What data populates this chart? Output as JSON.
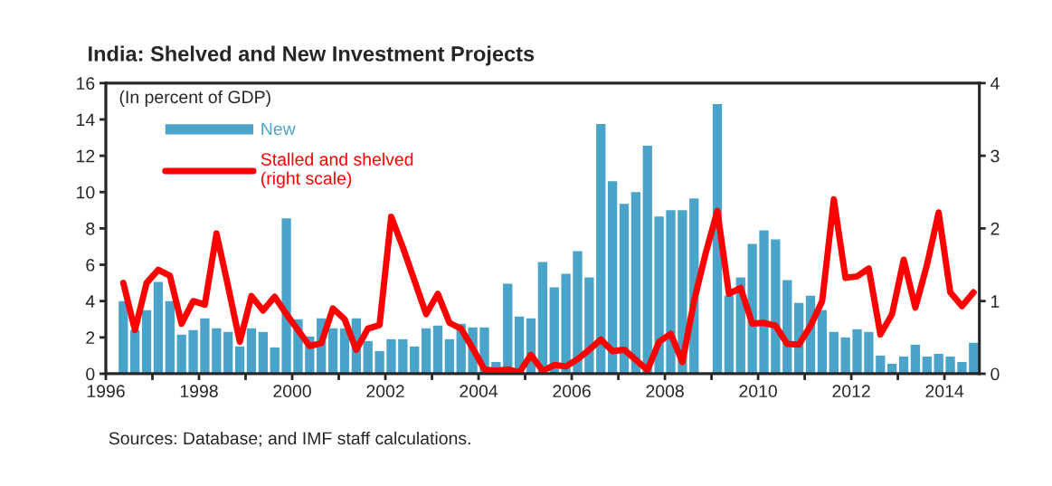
{
  "chart_data": {
    "type": "bar",
    "title": "India: Shelved and New Investment Projects",
    "subtitle": "(In percent of GDP)",
    "annotations": [
      "Sources: Database; and IMF staff calculations."
    ],
    "x": [
      1996.375,
      1996.625,
      1996.875,
      1997.125,
      1997.375,
      1997.625,
      1997.875,
      1998.125,
      1998.375,
      1998.625,
      1998.875,
      1999.125,
      1999.375,
      1999.625,
      1999.875,
      2000.125,
      2000.375,
      2000.625,
      2000.875,
      2001.125,
      2001.375,
      2001.625,
      2001.875,
      2002.125,
      2002.375,
      2002.625,
      2002.875,
      2003.125,
      2003.375,
      2003.625,
      2003.875,
      2004.125,
      2004.375,
      2004.625,
      2004.875,
      2005.125,
      2005.375,
      2005.625,
      2005.875,
      2006.125,
      2006.375,
      2006.625,
      2006.875,
      2007.125,
      2007.375,
      2007.625,
      2007.875,
      2008.125,
      2008.375,
      2008.625,
      2008.875,
      2009.125,
      2009.375,
      2009.625,
      2009.875,
      2010.125,
      2010.375,
      2010.625,
      2010.875,
      2011.125,
      2011.375,
      2011.625,
      2011.875,
      2012.125,
      2012.375,
      2012.625,
      2012.875,
      2013.125,
      2013.375,
      2013.625,
      2013.875,
      2014.125,
      2014.375,
      2014.625
    ],
    "series": [
      {
        "name": "New",
        "color": "#4aa3c8",
        "values": [
          4.0,
          2.4,
          3.5,
          5.05,
          4.0,
          2.15,
          2.4,
          3.05,
          2.5,
          2.3,
          1.5,
          2.5,
          2.3,
          1.45,
          8.55,
          3.0,
          2.05,
          3.05,
          2.5,
          2.5,
          3.05,
          1.8,
          1.25,
          1.9,
          1.9,
          1.5,
          2.5,
          2.65,
          1.9,
          2.75,
          2.55,
          2.55,
          0.65,
          4.95,
          3.15,
          3.05,
          6.15,
          4.75,
          5.5,
          6.75,
          5.3,
          13.75,
          10.6,
          9.35,
          10.0,
          12.55,
          8.65,
          9.0,
          9.0,
          9.65,
          null,
          14.85,
          4.3,
          5.3,
          7.15,
          7.9,
          7.4,
          5.15,
          3.9,
          4.3,
          3.5,
          2.3,
          2.0,
          2.45,
          2.3,
          1.0,
          0.55,
          0.95,
          1.6,
          0.95,
          1.1,
          0.95,
          0.65,
          1.7
        ]
      },
      {
        "name": "Stalled and shelved\n(right scale)",
        "type": "line",
        "axis": "y2",
        "color": "#ff0000",
        "values": [
          1.25,
          0.6,
          1.25,
          1.43,
          1.35,
          0.69,
          1.0,
          0.95,
          1.93,
          1.2,
          0.44,
          1.07,
          0.87,
          1.06,
          0.82,
          0.6,
          0.38,
          0.42,
          0.9,
          0.75,
          0.33,
          0.62,
          0.67,
          2.16,
          1.74,
          1.28,
          0.82,
          1.1,
          0.7,
          0.62,
          0.35,
          0.06,
          0.04,
          0.06,
          0.02,
          0.26,
          0.04,
          0.12,
          0.1,
          0.2,
          0.33,
          0.47,
          0.31,
          0.33,
          0.19,
          0.05,
          0.44,
          0.55,
          0.16,
          1.0,
          1.66,
          2.24,
          1.1,
          1.18,
          0.69,
          0.7,
          0.66,
          0.41,
          0.4,
          0.66,
          1.0,
          2.4,
          1.32,
          1.34,
          1.45,
          0.54,
          0.82,
          1.57,
          0.91,
          1.5,
          2.22,
          1.12,
          0.93,
          1.12
        ]
      }
    ],
    "xlim": [
      1996,
      2014.75
    ],
    "xticks": [
      {
        "value": 1996,
        "label": "1996"
      },
      {
        "value": 1997,
        "label": null
      },
      {
        "value": 1998,
        "label": "1998"
      },
      {
        "value": 1999,
        "label": null
      },
      {
        "value": 2000,
        "label": "2000"
      },
      {
        "value": 2001,
        "label": null
      },
      {
        "value": 2002,
        "label": "2002"
      },
      {
        "value": 2003,
        "label": null
      },
      {
        "value": 2004,
        "label": "2004"
      },
      {
        "value": 2005,
        "label": null
      },
      {
        "value": 2006,
        "label": "2006"
      },
      {
        "value": 2007,
        "label": null
      },
      {
        "value": 2008,
        "label": "2008"
      },
      {
        "value": 2009,
        "label": null
      },
      {
        "value": 2010,
        "label": "2010"
      },
      {
        "value": 2011,
        "label": null
      },
      {
        "value": 2012,
        "label": "2012"
      },
      {
        "value": 2013,
        "label": null
      },
      {
        "value": 2014,
        "label": "2014"
      }
    ],
    "ylim": [
      0,
      16
    ],
    "yticks": [
      0,
      2,
      4,
      6,
      8,
      10,
      12,
      14,
      16
    ],
    "y2lim": [
      0,
      4
    ],
    "y2ticks": [
      0,
      1,
      2,
      3,
      4
    ],
    "grid": false,
    "legend": "top left"
  }
}
